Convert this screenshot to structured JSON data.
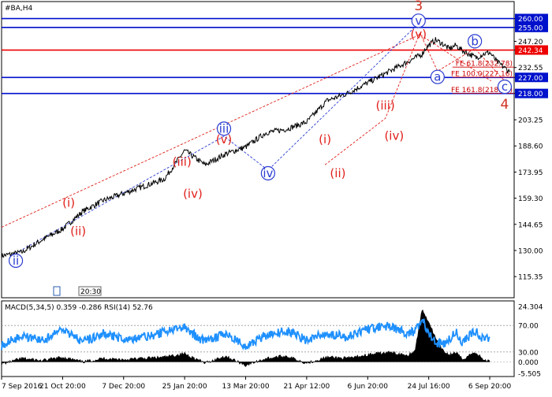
{
  "symbol": "#BA,H4",
  "chart_data": {
    "type": "line",
    "instrument": "#BA",
    "timeframe": "H4",
    "price_axis": {
      "ylim": [
        103.5,
        269.5
      ],
      "tick_labels": [
        "260.00",
        "255.00",
        "247.20",
        "242.34",
        "232.55",
        "227.00",
        "218.00",
        "203.25",
        "188.60",
        "173.95",
        "159.30",
        "144.65",
        "130.00",
        "115.35"
      ],
      "tick_values": [
        260.0,
        255.0,
        247.2,
        242.34,
        232.55,
        227.0,
        218.0,
        203.25,
        188.6,
        173.95,
        159.3,
        144.65,
        130.0,
        115.35
      ]
    },
    "time_axis": {
      "labels": [
        "7 Sep 2016",
        "21 Oct 20:00",
        "7 Dec 20:00",
        "25 Jan 20:00",
        "13 Mar 20:00",
        "21 Apr 12:00",
        "6 Jun 20:00",
        "24 Jul 16:00",
        "6 Sep 20:00"
      ],
      "positions": [
        0,
        9,
        18,
        27,
        36,
        45,
        54,
        63,
        72
      ]
    },
    "price_series": {
      "name": "#BA",
      "x": [
        0,
        3,
        6,
        9,
        12,
        15,
        18,
        21,
        24,
        27,
        30,
        33,
        36,
        39,
        42,
        45,
        48,
        51,
        54,
        57,
        60,
        62,
        62.5,
        63,
        64,
        65,
        66,
        67,
        68,
        69,
        70,
        71,
        72,
        73,
        74,
        75
      ],
      "y": [
        127,
        129,
        136,
        142,
        152,
        158,
        162,
        166,
        170,
        186,
        178,
        184,
        188,
        196,
        198,
        202,
        214,
        218,
        224,
        230,
        236,
        240,
        243,
        245,
        248,
        246,
        243,
        245,
        242,
        240,
        238,
        240,
        241,
        236,
        233,
        230
      ]
    },
    "horizontal_lines": [
      {
        "price": 260.0,
        "color": "#0011cc",
        "label": "260.00"
      },
      {
        "price": 255.0,
        "color": "#0011cc",
        "label": "255.00"
      },
      {
        "price": 242.34,
        "color": "#ee0000",
        "label": "242.34"
      },
      {
        "price": 227.0,
        "color": "#0011cc",
        "label": "227.00"
      },
      {
        "price": 218.0,
        "color": "#0011cc",
        "label": "218.00"
      }
    ],
    "fibo_levels": [
      {
        "label": "FE 61.8(232.78)",
        "value": 232.78
      },
      {
        "label": "FE 100.0(227.16)",
        "value": 227.16
      },
      {
        "label": "FE 161.8(218.07)",
        "value": 218.07
      }
    ],
    "wave_labels": [
      {
        "text": "3",
        "x": 61.5,
        "y": 265,
        "color": "big"
      },
      {
        "text": "4",
        "x": 74.2,
        "y": 210,
        "color": "big"
      },
      {
        "text": "v",
        "x": 61.5,
        "y": 257,
        "color": "blue",
        "circle": true
      },
      {
        "text": "(v)",
        "x": 61.5,
        "y": 249.5,
        "color": "red"
      },
      {
        "text": "b",
        "x": 69.8,
        "y": 245.5,
        "color": "blue",
        "circle": true
      },
      {
        "text": "a",
        "x": 64.3,
        "y": 225.5,
        "color": "blue",
        "circle": true
      },
      {
        "text": "c",
        "x": 74.2,
        "y": 220,
        "color": "blue",
        "circle": true
      },
      {
        "text": "iii",
        "x": 32.8,
        "y": 196.5,
        "color": "blue",
        "circle": true
      },
      {
        "text": "(v)",
        "x": 32.8,
        "y": 190.5,
        "color": "red"
      },
      {
        "text": "(iii)",
        "x": 26.6,
        "y": 178,
        "color": "red"
      },
      {
        "text": "(iv)",
        "x": 28.2,
        "y": 160,
        "color": "red"
      },
      {
        "text": "(i)",
        "x": 9.9,
        "y": 155,
        "color": "red"
      },
      {
        "text": "(ii)",
        "x": 11.3,
        "y": 139,
        "color": "red"
      },
      {
        "text": "ii",
        "x": 2.1,
        "y": 122.5,
        "color": "blue",
        "circle": true
      },
      {
        "text": "iv",
        "x": 39.3,
        "y": 171.5,
        "color": "blue",
        "circle": true
      },
      {
        "text": "(i)",
        "x": 47.7,
        "y": 190.5,
        "color": "red"
      },
      {
        "text": "(ii)",
        "x": 49.6,
        "y": 171.5,
        "color": "red"
      },
      {
        "text": "(iii)",
        "x": 56.6,
        "y": 209.5,
        "color": "red"
      },
      {
        "text": "(iv)",
        "x": 57.9,
        "y": 192.5,
        "color": "red"
      }
    ],
    "indicator": {
      "title": "MACD(5,34,5) 0.359 -0.286 RSI(14) 52.76",
      "tick_labels": [
        "24.304",
        "70.00",
        "30.00",
        "0.000",
        "-5.505"
      ],
      "rsi_levels": [
        70,
        30
      ],
      "macd_range": [
        -5.505,
        24.304
      ],
      "rsi_series": {
        "name": "RSI(14)",
        "x": [
          0,
          3,
          6,
          9,
          12,
          15,
          18,
          21,
          24,
          27,
          30,
          33,
          36,
          39,
          42,
          45,
          48,
          51,
          54,
          57,
          60,
          61,
          62,
          63,
          64,
          65,
          66,
          67,
          68,
          69,
          70,
          71,
          72
        ],
        "y": [
          40,
          55,
          48,
          62,
          45,
          58,
          50,
          52,
          60,
          66,
          45,
          58,
          40,
          55,
          62,
          48,
          58,
          52,
          64,
          70,
          58,
          62,
          80,
          60,
          45,
          40,
          48,
          60,
          42,
          55,
          62,
          50,
          52.76
        ]
      },
      "macd_series": {
        "name": "MACD",
        "x": [
          0,
          3,
          6,
          9,
          12,
          15,
          18,
          21,
          24,
          27,
          30,
          33,
          36,
          39,
          42,
          45,
          48,
          51,
          54,
          57,
          60,
          61,
          62,
          63,
          64,
          65,
          66,
          67,
          68,
          69,
          70,
          71,
          72
        ],
        "y": [
          -1,
          1.5,
          0.5,
          2,
          0,
          1.5,
          1,
          1.5,
          2,
          3.5,
          -0.5,
          2.5,
          -1.5,
          1.5,
          2.5,
          -0.5,
          2,
          1.5,
          3,
          4,
          3,
          5,
          22,
          17,
          10,
          5,
          3,
          4,
          1,
          3,
          4,
          1,
          0.359
        ]
      }
    }
  },
  "ui": {
    "mini_box_label": "20:30"
  }
}
